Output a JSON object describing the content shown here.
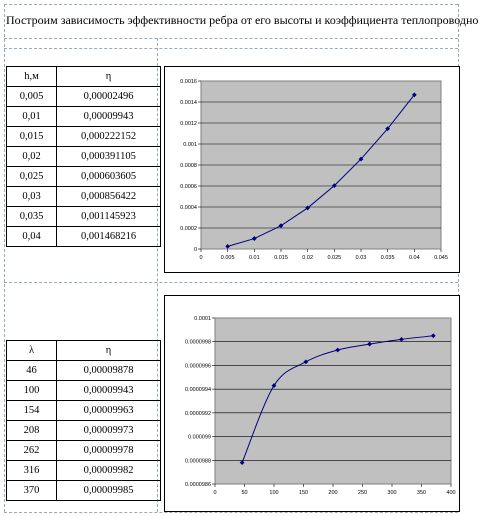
{
  "title": "Построим зависимость эффективности ребра от его высоты и коэффициента теплопроводности",
  "table1": {
    "headers": [
      "h,м",
      "η"
    ],
    "rows": [
      [
        "0,005",
        "0,00002496"
      ],
      [
        "0,01",
        "0,00009943"
      ],
      [
        "0,015",
        "0,000222152"
      ],
      [
        "0,02",
        "0,000391105"
      ],
      [
        "0,025",
        "0,000603605"
      ],
      [
        "0,03",
        "0,000856422"
      ],
      [
        "0,035",
        "0,001145923"
      ],
      [
        "0,04",
        "0,001468216"
      ]
    ]
  },
  "table2": {
    "headers": [
      "λ",
      "η"
    ],
    "rows": [
      [
        "46",
        "0,00009878"
      ],
      [
        "100",
        "0,00009943"
      ],
      [
        "154",
        "0,00009963"
      ],
      [
        "208",
        "0,00009973"
      ],
      [
        "262",
        "0,00009978"
      ],
      [
        "316",
        "0,00009982"
      ],
      [
        "370",
        "0,00009985"
      ]
    ]
  },
  "chart_data": [
    {
      "type": "line",
      "x": [
        0.005,
        0.01,
        0.015,
        0.02,
        0.025,
        0.03,
        0.035,
        0.04
      ],
      "y": [
        2.496e-05,
        9.943e-05,
        0.000222152,
        0.000391105,
        0.000603605,
        0.000856422,
        0.001145923,
        0.001468216
      ],
      "xlim": [
        0,
        0.045
      ],
      "ylim": [
        0,
        0.0016
      ],
      "xticks": [
        "0",
        "0.005",
        "0.01",
        "0.015",
        "0.02",
        "0.025",
        "0.03",
        "0.035",
        "0.04",
        "0.045"
      ],
      "yticks": [
        "0",
        "0.0002",
        "0.0004",
        "0.0006",
        "0.0008",
        "0.001",
        "0.0012",
        "0.0014",
        "0.0016"
      ],
      "grid": "horizontal",
      "plot_background": "#c0c0c0",
      "line_color": "#000080",
      "title": "",
      "xlabel": "",
      "ylabel": ""
    },
    {
      "type": "line",
      "x": [
        46,
        100,
        154,
        208,
        262,
        316,
        370
      ],
      "y": [
        9.878e-05,
        9.943e-05,
        9.963e-05,
        9.973e-05,
        9.978e-05,
        9.982e-05,
        9.985e-05
      ],
      "xlim": [
        0,
        400
      ],
      "ylim": [
        9.86e-05,
        0.0001
      ],
      "xticks": [
        "0",
        "50",
        "100",
        "150",
        "200",
        "250",
        "300",
        "350",
        "400"
      ],
      "yticks": [
        "0.0000986",
        "0.0000988",
        "0.000099",
        "0.0000992",
        "0.0000994",
        "0.0000996",
        "0.0000998",
        "0.0001"
      ],
      "grid": "horizontal",
      "plot_background": "#c0c0c0",
      "line_color": "#000080",
      "smooth": true,
      "title": "",
      "xlabel": "",
      "ylabel": ""
    }
  ]
}
